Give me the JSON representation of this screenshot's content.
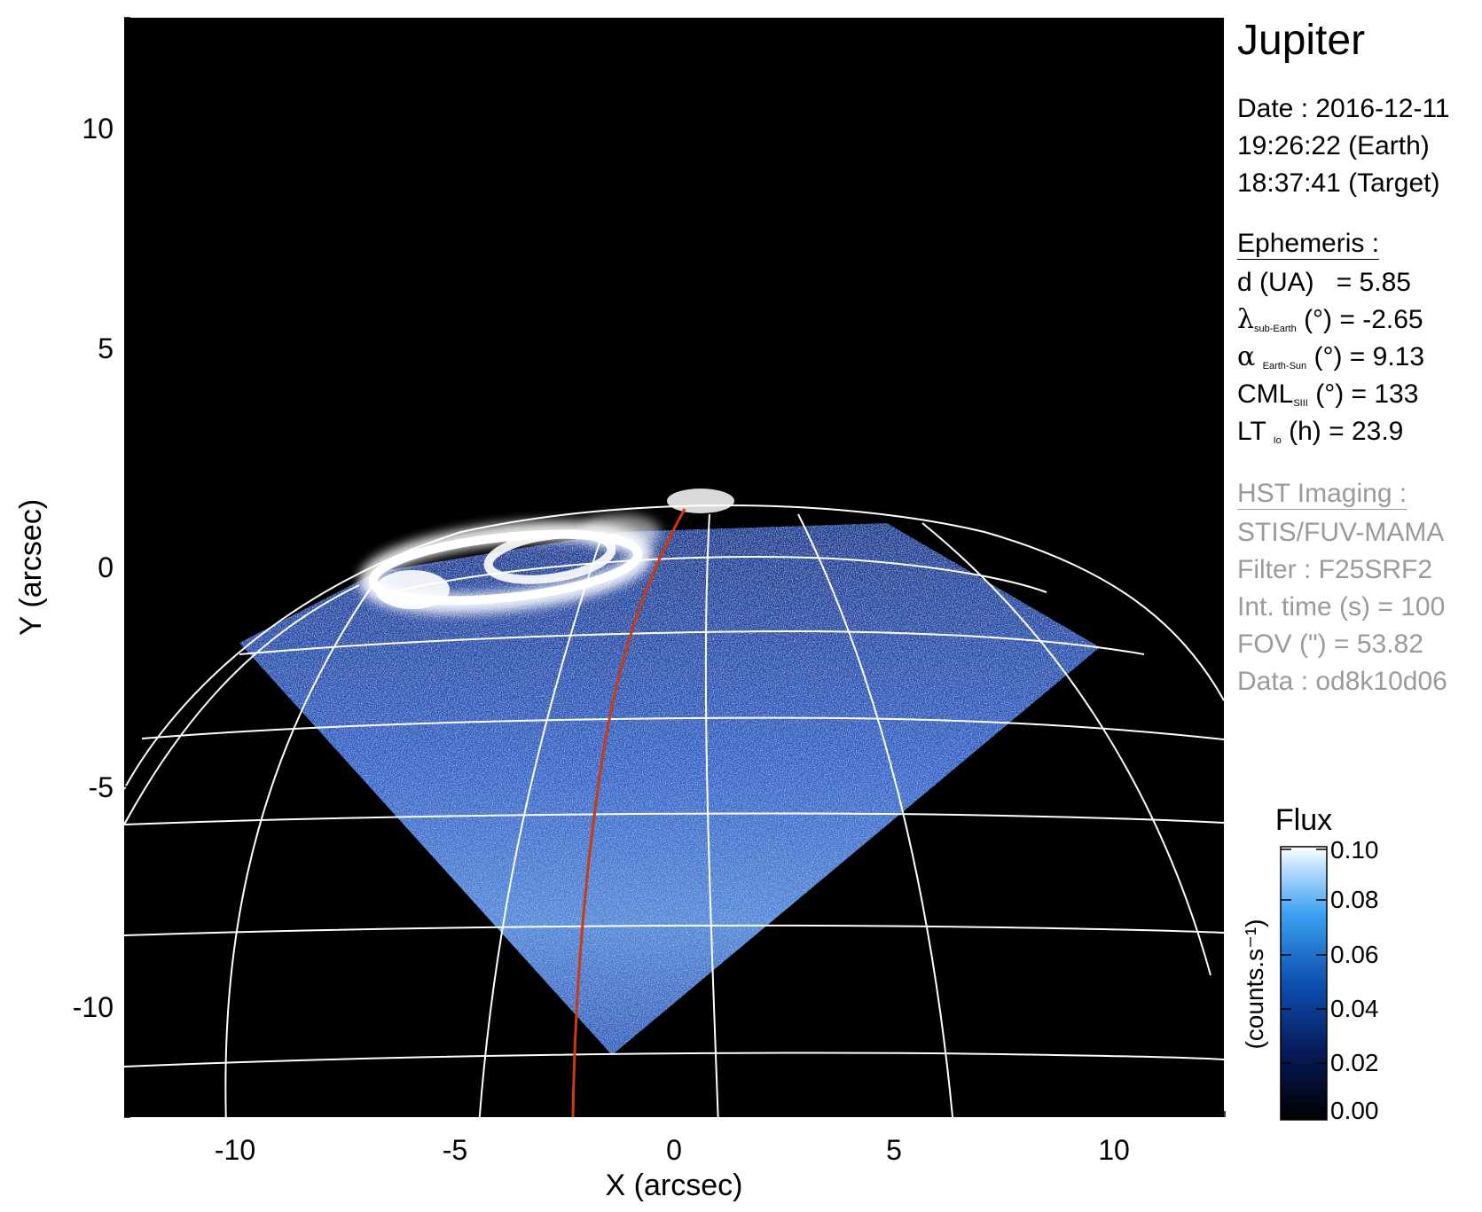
{
  "title": "Jupiter",
  "observation": {
    "date_line": "Date : 2016-12-11",
    "earth_time": "19:26:22 (Earth)",
    "target_time": "18:37:41 (Target)"
  },
  "ephemeris": {
    "heading": "Ephemeris :",
    "distance": {
      "label": "d (UA)",
      "eq": "= 5.85"
    },
    "lat_sub_earth": {
      "symbol": "λ",
      "sub": "sub-Earth",
      "rest": "(°) = -2.65"
    },
    "phase_angle": {
      "symbol": "α",
      "sub": "Earth-Sun",
      "rest": "(°) = 9.13"
    },
    "cml": {
      "symbol": "CML",
      "sub": "SIII",
      "rest": "(°) = 133"
    },
    "lt_io": {
      "symbol": "LT",
      "sub": "Io",
      "rest": "(h) = 23.9"
    }
  },
  "hst": {
    "heading": "HST Imaging :",
    "instrument": "STIS/FUV-MAMA",
    "filter": "Filter : F25SRF2",
    "int_time": "Int. time (s) = 100",
    "fov": "FOV (\") = 53.82",
    "data": "Data : od8k10d06"
  },
  "colorbar": {
    "title": "Flux",
    "unit_label": "(counts.s⁻¹)",
    "ticks": [
      "0.10",
      "0.08",
      "0.06",
      "0.04",
      "0.02",
      "0.00"
    ],
    "range": [
      0.0,
      0.1
    ]
  },
  "axes": {
    "xlabel": "X (arcsec)",
    "ylabel": "Y (arcsec)",
    "xticks": [
      "-10",
      "-5",
      "0",
      "5",
      "10"
    ],
    "yticks": [
      "10",
      "5",
      "0",
      "-5",
      "-10"
    ],
    "xlim": [
      -12.5,
      12.5
    ],
    "ylim": [
      -12.5,
      12.5
    ]
  },
  "colors": {
    "background": "#000000",
    "grid": "#ffffff",
    "io_footpath": "#cc3a10",
    "emission": "#2a5cd0"
  }
}
